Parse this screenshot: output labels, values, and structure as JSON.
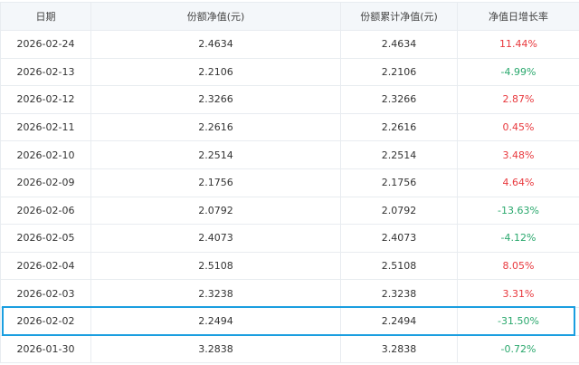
{
  "headers": [
    "日期",
    "份额净值(元)",
    "份额累计净值(元)",
    "净值日增长率"
  ],
  "rows": [
    {
      "date": "2026-02-24",
      "nav": "2.4634",
      "acc": "2.4634",
      "rate": "11.44%",
      "dir": "up"
    },
    {
      "date": "2026-02-13",
      "nav": "2.2106",
      "acc": "2.2106",
      "rate": "-4.99%",
      "dir": "down"
    },
    {
      "date": "2026-02-12",
      "nav": "2.3266",
      "acc": "2.3266",
      "rate": "2.87%",
      "dir": "up"
    },
    {
      "date": "2026-02-11",
      "nav": "2.2616",
      "acc": "2.2616",
      "rate": "0.45%",
      "dir": "up"
    },
    {
      "date": "2026-02-10",
      "nav": "2.2514",
      "acc": "2.2514",
      "rate": "3.48%",
      "dir": "up"
    },
    {
      "date": "2026-02-09",
      "nav": "2.1756",
      "acc": "2.1756",
      "rate": "4.64%",
      "dir": "up"
    },
    {
      "date": "2026-02-06",
      "nav": "2.0792",
      "acc": "2.0792",
      "rate": "-13.63%",
      "dir": "down"
    },
    {
      "date": "2026-02-05",
      "nav": "2.4073",
      "acc": "2.4073",
      "rate": "-4.12%",
      "dir": "down"
    },
    {
      "date": "2026-02-04",
      "nav": "2.5108",
      "acc": "2.5108",
      "rate": "8.05%",
      "dir": "up"
    },
    {
      "date": "2026-02-03",
      "nav": "2.3238",
      "acc": "2.3238",
      "rate": "3.31%",
      "dir": "up"
    },
    {
      "date": "2026-02-02",
      "nav": "2.2494",
      "acc": "2.2494",
      "rate": "-31.50%",
      "dir": "down"
    },
    {
      "date": "2026-01-30",
      "nav": "3.2838",
      "acc": "3.2838",
      "rate": "-0.72%",
      "dir": "down"
    }
  ],
  "highlighted_row": "2026-02-02",
  "colors": {
    "up": "#e8383d",
    "down": "#2aa86d",
    "highlight": "#1a9ee0"
  }
}
